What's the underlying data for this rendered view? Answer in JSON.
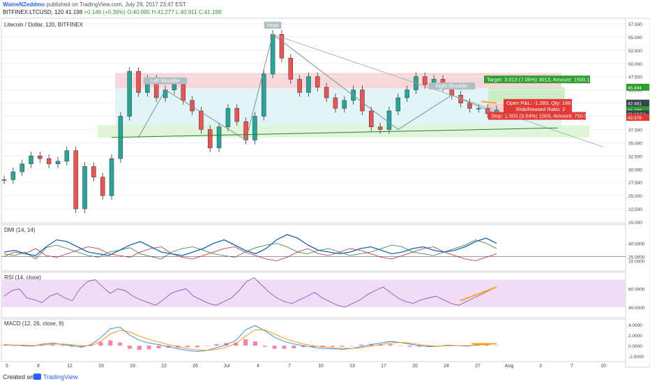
{
  "header": {
    "author": "WaineNZeddmo",
    "published": "published on TradingView.com, July 29, 2017 23:47 EST",
    "symbol_line": "BITFINEX:LTCUSD, 120",
    "last": "41.198",
    "change": "+0.146 (+0.36%)",
    "ohlc": "O:40.985 H:41.277 L:40.911 C:41.198"
  },
  "footer": {
    "created": "Created with",
    "brand": "TradingView"
  },
  "colors": {
    "up": "#26a69a",
    "down": "#ef5350",
    "red_zone": "#f8d7da",
    "blue_zone": "#d9f3f7",
    "green_band": "#dff5d8",
    "dmi_plus": "#2e7d32",
    "dmi_minus": "#c62828",
    "adx": "#1565c0",
    "rsi": "#8e44ad",
    "rsi_band": "#efdcf7",
    "macd": "#1e88e5",
    "signal": "#fb8c00",
    "hist": "#ff80ab",
    "target_box": "#2e9e2e",
    "stop_box": "#e53935",
    "pnl_box": "#e53935",
    "trend": "#f9a825",
    "pattern_line": "#78909c"
  },
  "chart_data": [
    {
      "type": "line",
      "title": "Litecoin / Dollar, 120, BITFINEX",
      "series": [
        {
          "values": [
            {
              "x": "5",
              "y": 28.0
            },
            {
              "x": "6",
              "y": 29.5
            },
            {
              "x": "7",
              "y": 31.0
            },
            {
              "x": "8",
              "y": 32.5
            },
            {
              "x": "9",
              "y": 32.0
            },
            {
              "x": "10",
              "y": 31.0
            },
            {
              "x": "11",
              "y": 31.5
            },
            {
              "x": "12",
              "y": 33.5
            },
            {
              "x": "12b",
              "y": 22.5
            },
            {
              "x": "13",
              "y": 30.5
            },
            {
              "x": "14",
              "y": 28.5
            },
            {
              "x": "15",
              "y": 25.0
            },
            {
              "x": "16",
              "y": 32.0
            },
            {
              "x": "17",
              "y": 40.0
            },
            {
              "x": "18",
              "y": 48.5
            },
            {
              "x": "19",
              "y": 44.5
            },
            {
              "x": "20",
              "y": 47.0
            },
            {
              "x": "21",
              "y": 43.5
            },
            {
              "x": "22",
              "y": 45.0
            },
            {
              "x": "23",
              "y": 46.0
            },
            {
              "x": "24",
              "y": 43.0
            },
            {
              "x": "25",
              "y": 41.0
            },
            {
              "x": "26",
              "y": 37.5
            },
            {
              "x": "27",
              "y": 34.0
            },
            {
              "x": "28",
              "y": 38.0
            },
            {
              "x": "29",
              "y": 41.5
            },
            {
              "x": "30",
              "y": 39.0
            },
            {
              "x": "Jul",
              "y": 35.5
            },
            {
              "x": "2",
              "y": 40.0
            },
            {
              "x": "3",
              "y": 48.0
            },
            {
              "x": "4",
              "y": 55.5
            },
            {
              "x": "5",
              "y": 51.0
            },
            {
              "x": "6",
              "y": 47.0
            },
            {
              "x": "7",
              "y": 44.5
            },
            {
              "x": "8",
              "y": 47.5
            },
            {
              "x": "9",
              "y": 45.5
            },
            {
              "x": "10",
              "y": 43.5
            },
            {
              "x": "11",
              "y": 41.5
            },
            {
              "x": "12",
              "y": 43.0
            },
            {
              "x": "13",
              "y": 45.0
            },
            {
              "x": "14",
              "y": 41.0
            },
            {
              "x": "15",
              "y": 38.0
            },
            {
              "x": "16",
              "y": 37.5
            },
            {
              "x": "17",
              "y": 41.0
            },
            {
              "x": "18",
              "y": 43.5
            },
            {
              "x": "19",
              "y": 45.0
            },
            {
              "x": "20",
              "y": 47.5
            },
            {
              "x": "21",
              "y": 46.0
            },
            {
              "x": "22",
              "y": 47.0
            },
            {
              "x": "23",
              "y": 45.5
            },
            {
              "x": "24",
              "y": 44.0
            },
            {
              "x": "25",
              "y": 42.5
            },
            {
              "x": "26",
              "y": 41.5
            },
            {
              "x": "27",
              "y": 41.5
            },
            {
              "x": "28",
              "y": 40.5
            },
            {
              "x": "29",
              "y": 41.198
            }
          ]
        }
      ],
      "ylim": [
        20.0,
        57.5
      ],
      "y_ticks": [
        "57.500",
        "55.000",
        "52.500",
        "50.000",
        "47.500",
        "45.000",
        "42.500",
        "40.000",
        "37.500",
        "35.000",
        "32.500",
        "30.000",
        "27.500",
        "25.000",
        "22.500",
        "20.000"
      ],
      "x_tick_labels": [
        "5",
        "8",
        "12",
        "15",
        "19",
        "22",
        "26",
        "Jul",
        "4",
        "7",
        "10",
        "13",
        "17",
        "20",
        "24",
        "27",
        "Aug",
        "3",
        "7",
        "10"
      ],
      "annotations": [
        "Left Shoulder",
        "Head",
        "Right Shoulder"
      ],
      "price_labels": [
        "45.494",
        "42.481",
        "41.198",
        "01:12:54",
        "40.978"
      ],
      "position": {
        "target": "Target: 3.013 (7.09%) 3013, Amount: 1500.16",
        "open_pnl": "Open P&L: -1.283, Qty: 166",
        "rr": "Risk/Reward Ratio: 2",
        "stop": "Stop: 1.503 (3.54%) 1503, Amount: 750.5"
      }
    },
    {
      "type": "line",
      "title": "DMI (14, 14)",
      "series": [
        {
          "values": [
            28,
            26,
            30,
            22,
            35,
            38,
            34,
            30,
            26,
            24,
            30,
            32,
            35,
            28,
            25,
            22,
            30,
            34,
            36,
            32,
            28,
            26,
            24,
            30,
            35,
            38,
            40,
            36,
            30,
            28,
            32,
            34,
            30,
            26,
            28,
            30,
            34,
            38,
            36,
            30,
            28,
            26,
            30,
            34,
            38,
            44,
            40,
            34
          ]
        },
        {
          "values": [
            25,
            30,
            28,
            34,
            26,
            24,
            28,
            32,
            36,
            34,
            28,
            26,
            24,
            30,
            34,
            36,
            28,
            24,
            22,
            26,
            30,
            34,
            36,
            30,
            26,
            22,
            20,
            24,
            30,
            34,
            28,
            26,
            30,
            34,
            32,
            28,
            24,
            22,
            26,
            30,
            34,
            36,
            30,
            26,
            22,
            20,
            24,
            28
          ]
        },
        {
          "values": [
            30,
            32,
            28,
            26,
            36,
            44,
            42,
            36,
            30,
            28,
            26,
            32,
            38,
            42,
            36,
            30,
            28,
            26,
            30,
            34,
            40,
            44,
            38,
            32,
            28,
            34,
            44,
            50,
            46,
            38,
            32,
            30,
            28,
            30,
            34,
            36,
            32,
            28,
            30,
            34,
            36,
            32,
            30,
            32,
            36,
            42,
            46,
            40
          ]
        }
      ],
      "ylim": [
        10,
        58
      ],
      "y_ticks": [
        "40.0000",
        "25.0000",
        "20.0000"
      ]
    },
    {
      "type": "line",
      "title": "RSI (14, close)",
      "series": [
        {
          "values": [
            52,
            58,
            60,
            50,
            48,
            45,
            52,
            55,
            50,
            47,
            60,
            68,
            70,
            62,
            55,
            60,
            58,
            52,
            48,
            45,
            42,
            48,
            55,
            58,
            60,
            52,
            48,
            44,
            42,
            46,
            50,
            58,
            68,
            72,
            64,
            56,
            50,
            46,
            44,
            48,
            52,
            56,
            50,
            46,
            42,
            40,
            44,
            48,
            54,
            58,
            62,
            56,
            50,
            46,
            44,
            48,
            50,
            52,
            48,
            44,
            42,
            46,
            50,
            54,
            58,
            62
          ]
        }
      ],
      "ylim": [
        30,
        75
      ],
      "y_ticks": [
        "60.0000",
        "40.0000"
      ],
      "band": [
        40,
        70
      ]
    },
    {
      "type": "line",
      "title": "MACD (12, 26, close, 9)",
      "series": [
        {
          "values": [
            0.2,
            0.1,
            0.0,
            -0.1,
            0.3,
            0.5,
            0.2,
            0.0,
            -0.3,
            0.2,
            1.5,
            3.2,
            3.5,
            2.0,
            1.0,
            0.5,
            0.2,
            -0.2,
            -0.6,
            -0.9,
            -1.1,
            -0.9,
            -0.4,
            0.2,
            1.0,
            3.0,
            3.8,
            2.8,
            1.6,
            0.8,
            0.3,
            0.0,
            -0.3,
            -0.5,
            -0.6,
            -0.7,
            -0.5,
            -0.2,
            0.2,
            0.5,
            0.8,
            0.6,
            0.3,
            0.0,
            -0.2,
            -0.1,
            0.1,
            0.0,
            -0.1,
            0.2,
            0.4,
            0.3
          ]
        },
        {
          "values": [
            0.1,
            0.1,
            0.1,
            0.0,
            0.1,
            0.3,
            0.3,
            0.2,
            0.0,
            0.0,
            0.8,
            2.2,
            2.9,
            2.6,
            1.8,
            1.2,
            0.7,
            0.2,
            -0.2,
            -0.6,
            -0.8,
            -0.9,
            -0.7,
            -0.3,
            0.4,
            1.8,
            3.0,
            3.0,
            2.2,
            1.4,
            0.8,
            0.3,
            0.0,
            -0.2,
            -0.4,
            -0.5,
            -0.5,
            -0.4,
            -0.1,
            0.2,
            0.5,
            0.6,
            0.5,
            0.2,
            0.0,
            -0.1,
            0.0,
            0.0,
            0.0,
            0.1,
            0.2,
            0.3
          ]
        },
        {
          "values": [
            0.1,
            0.0,
            -0.1,
            -0.1,
            0.2,
            0.2,
            -0.1,
            -0.2,
            -0.3,
            0.2,
            0.7,
            1.0,
            0.6,
            -0.6,
            -0.8,
            -0.7,
            -0.5,
            -0.4,
            -0.4,
            -0.3,
            -0.3,
            0.0,
            0.3,
            0.5,
            0.6,
            1.2,
            0.8,
            -0.2,
            -0.6,
            -0.6,
            -0.5,
            -0.3,
            -0.3,
            -0.3,
            -0.2,
            -0.2,
            0.0,
            0.2,
            0.3,
            0.3,
            0.3,
            0.0,
            -0.2,
            -0.2,
            -0.2,
            0.0,
            0.1,
            0.0,
            -0.1,
            0.1,
            0.2,
            0.0
          ]
        }
      ],
      "ylim": [
        -2.5,
        4.5
      ],
      "y_ticks": [
        "4.0000",
        "2.0000",
        "0.0000",
        "-2.0000"
      ]
    }
  ]
}
